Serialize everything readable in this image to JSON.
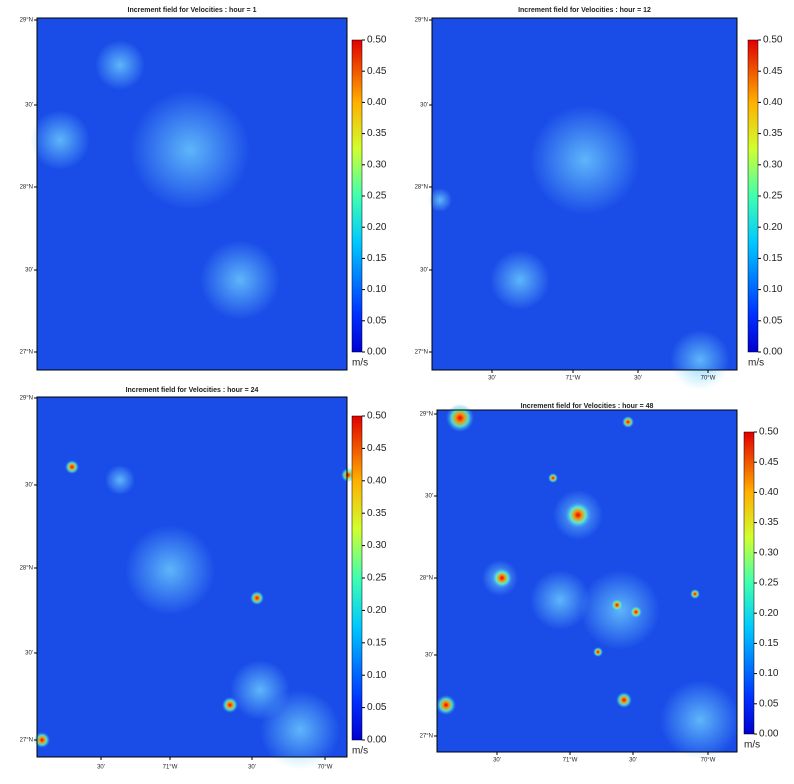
{
  "panels": [
    {
      "title": "Increment field for Velocities : hour = 1",
      "lat_labels": [
        "29°N",
        "30'",
        "28°N",
        "30'",
        "27°N"
      ],
      "lon_labels": [],
      "colorbar": {
        "ticks": [
          "0.50",
          "0.45",
          "0.40",
          "0.35",
          "0.30",
          "0.25",
          "0.20",
          "0.15",
          "0.10",
          "0.05",
          "0.00"
        ],
        "unit": "m/s"
      }
    },
    {
      "title": "Increment field for Velocities : hour = 12",
      "lat_labels": [
        "29°N",
        "30'",
        "28°N",
        "30'",
        "27°N"
      ],
      "lon_labels": [
        "30'",
        "71°W",
        "30'",
        "70°W"
      ],
      "colorbar": {
        "ticks": [
          "0.50",
          "0.45",
          "0.40",
          "0.35",
          "0.30",
          "0.25",
          "0.20",
          "0.15",
          "0.10",
          "0.05",
          "0.00"
        ],
        "unit": "m/s"
      }
    },
    {
      "title": "Increment field for Velocities : hour = 24",
      "lat_labels": [
        "29°N",
        "30'",
        "28°N",
        "30'",
        "27°N"
      ],
      "lon_labels": [
        "30'",
        "71°W",
        "30'",
        "70°W"
      ],
      "colorbar": {
        "ticks": [
          "0.50",
          "0.45",
          "0.40",
          "0.35",
          "0.30",
          "0.25",
          "0.20",
          "0.15",
          "0.10",
          "0.05",
          "0.00"
        ],
        "unit": "m/s"
      }
    },
    {
      "title": "Increment field for Velocities : hour = 48",
      "lat_labels": [
        "29°N",
        "30'",
        "28°N",
        "30'",
        "27°N"
      ],
      "lon_labels": [
        "30'",
        "71°W",
        "30'",
        "70°W"
      ],
      "colorbar": {
        "ticks": [
          "0.50",
          "0.45",
          "0.40",
          "0.35",
          "0.30",
          "0.25",
          "0.20",
          "0.15",
          "0.10",
          "0.05",
          "0.00"
        ],
        "unit": "m/s"
      }
    }
  ]
}
